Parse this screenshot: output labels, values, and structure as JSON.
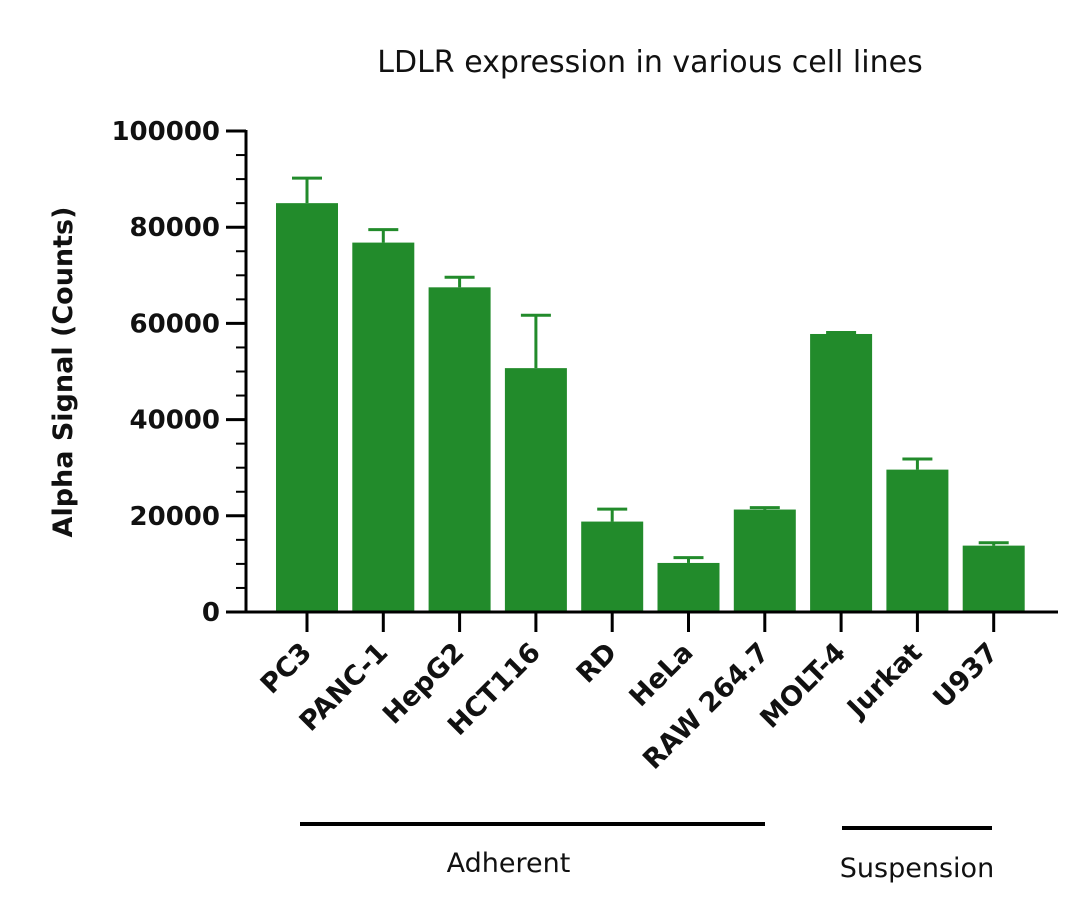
{
  "chart_data": {
    "type": "bar",
    "title": "LDLR expression in various cell lines",
    "ylabel": "Alpha Signal (Counts)",
    "xlabel": "",
    "ylim": [
      0,
      100000
    ],
    "yticks": [
      0,
      20000,
      40000,
      60000,
      80000,
      100000
    ],
    "categories": [
      "PC3",
      "PANC-1",
      "HepG2",
      "HCT116",
      "RD",
      "HeLa",
      "RAW 264.7",
      "MOLT-4",
      "Jurkat",
      "U937"
    ],
    "values": [
      85000,
      76800,
      67500,
      50700,
      18800,
      10200,
      21300,
      57800,
      29600,
      13800
    ],
    "errors": [
      5200,
      2700,
      2100,
      11000,
      2600,
      1100,
      400,
      300,
      2200,
      600
    ],
    "bar_color": "#228B2B",
    "groups": [
      {
        "label": "Adherent",
        "from": 0,
        "to": 6
      },
      {
        "label": "Suspension",
        "from": 7,
        "to": 9
      }
    ]
  }
}
